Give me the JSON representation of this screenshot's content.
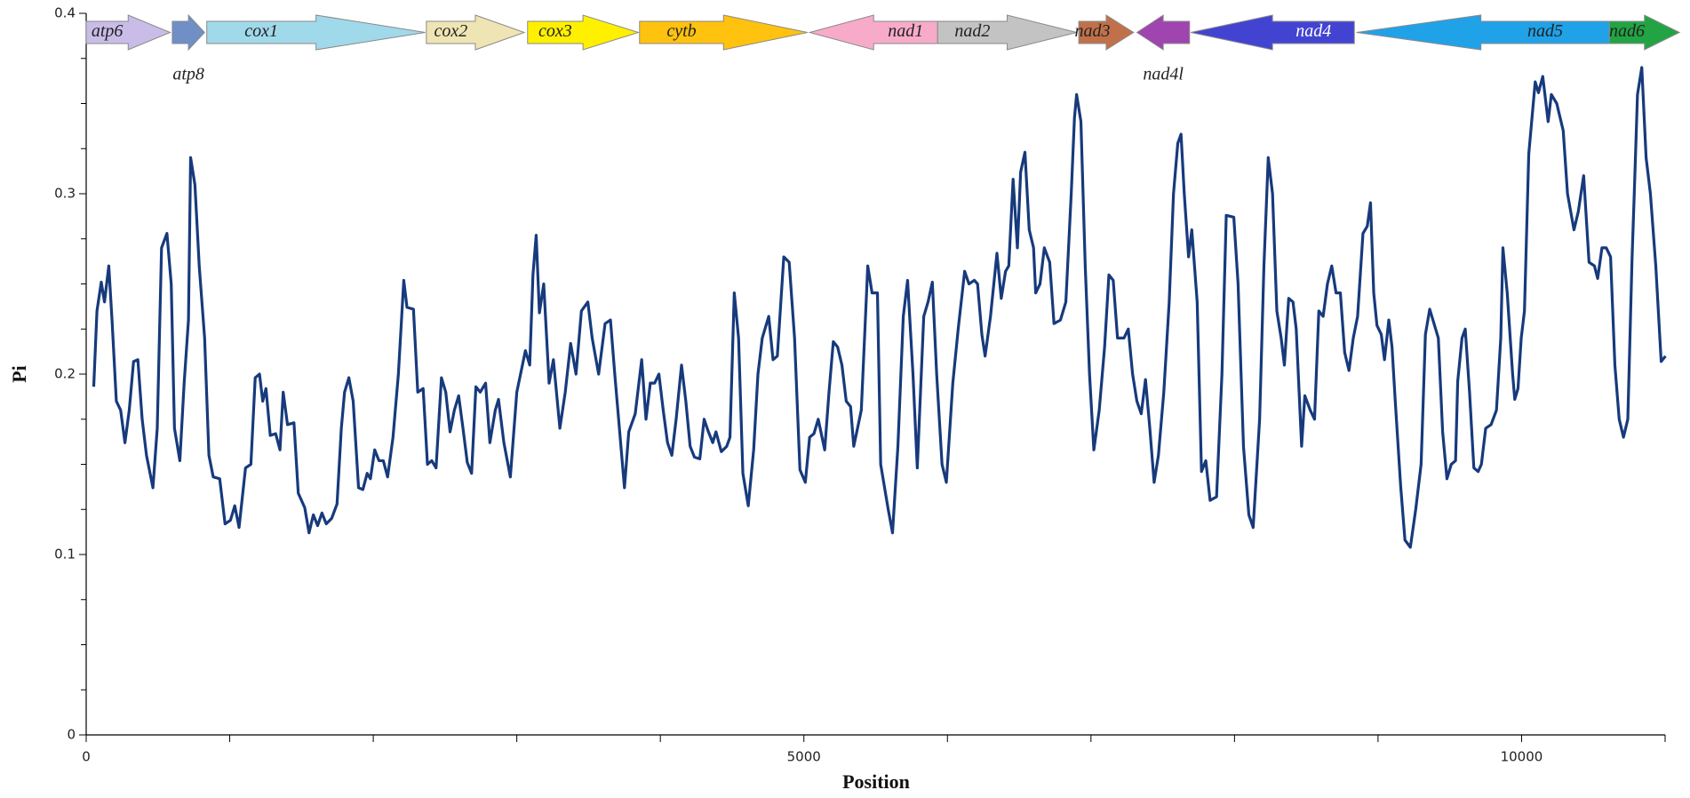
{
  "chart_data": {
    "type": "line",
    "xlabel": "Position",
    "ylabel": "Pi",
    "xlim": [
      0,
      11000
    ],
    "ylim": [
      0,
      0.4
    ],
    "xticks": [
      0,
      5000,
      10000
    ],
    "xminorticks": [
      1000,
      2000,
      3000,
      4000,
      6000,
      7000,
      8000,
      9000,
      11000
    ],
    "yticks": [
      0,
      0.1,
      0.2,
      0.3,
      0.4
    ],
    "yminorticks": [
      0.025,
      0.05,
      0.075,
      0.125,
      0.15,
      0.175,
      0.225,
      0.25,
      0.275,
      0.325,
      0.35,
      0.375
    ],
    "genes": [
      {
        "name": "atp6",
        "start": 0,
        "end": 585,
        "direction": "right",
        "color": "#c9bde8",
        "label_below": false
      },
      {
        "name": "atp8",
        "start": 600,
        "end": 825,
        "direction": "right",
        "color": "#6f8fc6",
        "label_below": true
      },
      {
        "name": "cox1",
        "start": 840,
        "end": 2362,
        "direction": "right",
        "color": "#a0d9ea",
        "label_below": false
      },
      {
        "name": "cox2",
        "start": 2370,
        "end": 3052,
        "direction": "right",
        "color": "#efe5b4",
        "label_below": false
      },
      {
        "name": "cox3",
        "start": 3075,
        "end": 3847,
        "direction": "right",
        "color": "#fff000",
        "label_below": false
      },
      {
        "name": "cytb",
        "start": 3855,
        "end": 5025,
        "direction": "right",
        "color": "#ffc20e",
        "label_below": false
      },
      {
        "name": "nad1",
        "start": 5040,
        "end": 5932,
        "direction": "left",
        "color": "#f7abc9",
        "label_below": false
      },
      {
        "name": "nad2",
        "start": 5932,
        "end": 6900,
        "direction": "right",
        "color": "#c3c3c3",
        "label_below": false
      },
      {
        "name": "nad3",
        "start": 6915,
        "end": 7297,
        "direction": "right",
        "color": "#c0714a",
        "label_below": false
      },
      {
        "name": "nad4l",
        "start": 7320,
        "end": 7687,
        "direction": "left",
        "color": "#a044b0",
        "label_below": true
      },
      {
        "name": "nad4",
        "start": 7695,
        "end": 8835,
        "direction": "left",
        "color": "#4343d2",
        "label_below": false
      },
      {
        "name": "nad5",
        "start": 8850,
        "end": 10612,
        "direction": "left",
        "color": "#20a2e8",
        "label_below": false
      },
      {
        "name": "nad6",
        "start": 10612,
        "end": 11100,
        "direction": "right",
        "color": "#22a444",
        "label_below": false
      }
    ],
    "x": [
      52.5,
      75,
      105,
      127.5,
      157.5,
      180,
      210,
      240,
      270,
      300,
      330,
      360,
      390,
      420,
      465,
      495,
      525,
      562.5,
      592.5,
      615,
      652.5,
      682.5,
      712.5,
      727.5,
      757.5,
      787.5,
      825,
      855,
      885,
      930,
      967.5,
      1005,
      1035,
      1065,
      1110,
      1147.5,
      1177.5,
      1207.5,
      1230,
      1252.5,
      1282.5,
      1320,
      1350,
      1372.5,
      1402.5,
      1447.5,
      1477.5,
      1522.5,
      1552.5,
      1582.5,
      1612.5,
      1642.5,
      1672.5,
      1710,
      1747.5,
      1777.5,
      1800,
      1830,
      1860,
      1897.5,
      1927.5,
      1957.5,
      1980,
      2010,
      2040,
      2070,
      2100,
      2137.5,
      2175,
      2212.5,
      2235,
      2280,
      2310,
      2347.5,
      2377.5,
      2407.5,
      2437.5,
      2475,
      2505,
      2535,
      2565,
      2595,
      2625,
      2655,
      2685,
      2715,
      2745,
      2782.5,
      2812.5,
      2850,
      2872.5,
      2910,
      2955,
      3000,
      3060,
      3090,
      3112.5,
      3135,
      3157.5,
      3187.5,
      3225,
      3255,
      3300,
      3337.5,
      3375,
      3412.5,
      3450,
      3495,
      3525,
      3570,
      3615,
      3652.5,
      3682.5,
      3750,
      3780,
      3825,
      3870,
      3900,
      3930,
      3960,
      3990,
      4020,
      4050,
      4080,
      4110,
      4147.5,
      4177.5,
      4207.5,
      4237.5,
      4275,
      4305,
      4335,
      4365,
      4387.5,
      4425,
      4462.5,
      4485,
      4515,
      4545,
      4575,
      4612.5,
      4650,
      4680,
      4710,
      4755,
      4785,
      4815,
      4860,
      4897.5,
      4935,
      4972.5,
      5010,
      5040,
      5070,
      5100,
      5145,
      5175,
      5205,
      5235,
      5265,
      5295,
      5325,
      5347.5,
      5400,
      5445,
      5475,
      5512.5,
      5535,
      5587.5,
      5617.5,
      5655,
      5692.5,
      5722.5,
      5760,
      5790,
      5835,
      5865,
      5895,
      5925,
      5962.5,
      5992.5,
      6037.5,
      6075,
      6120,
      6150,
      6187.5,
      6210,
      6240,
      6262.5,
      6300,
      6345,
      6375,
      6405,
      6427.5,
      6457.5,
      6487.5,
      6510,
      6540,
      6570,
      6600,
      6615,
      6645,
      6675,
      6712.5,
      6742.5,
      6787.5,
      6825,
      6862.5,
      6885,
      6900,
      6930,
      6960,
      6990,
      7020,
      7057.5,
      7095,
      7125,
      7155,
      7185,
      7230,
      7260,
      7290,
      7320,
      7350,
      7380,
      7410,
      7440,
      7470,
      7507.5,
      7545,
      7575,
      7605,
      7627.5,
      7650,
      7680,
      7702.5,
      7740,
      7770,
      7800,
      7830,
      7875,
      7912.5,
      7942.5,
      7995,
      8025,
      8062.5,
      8100,
      8130,
      8175,
      8205,
      8235,
      8265,
      8295,
      8325,
      8347.5,
      8377.5,
      8407.5,
      8430,
      8467.5,
      8490,
      8527.5,
      8557.5,
      8587.5,
      8617.5,
      8647.5,
      8677.5,
      8707.5,
      8737.5,
      8767.5,
      8797.5,
      8827.5,
      8857.5,
      8895,
      8925,
      8947.5,
      8970,
      8992.5,
      9022.5,
      9045,
      9075,
      9097.5,
      9120,
      9157.5,
      9187.5,
      9225,
      9262.5,
      9300,
      9330,
      9360,
      9390,
      9420,
      9450,
      9480,
      9510,
      9540,
      9555,
      9585,
      9607.5,
      9637.5,
      9667.5,
      9697.5,
      9720,
      9750,
      9787.5,
      9825,
      9855,
      9870,
      9900,
      9937.5,
      9952.5,
      9975,
      9997.5,
      10020,
      10050,
      10095,
      10117.5,
      10147.5,
      10185,
      10207.5,
      10245,
      10290,
      10320,
      10365,
      10395,
      10432.5,
      10470,
      10507.5,
      10530,
      10560,
      10590,
      10620,
      10650,
      10680,
      10710,
      10740,
      10770,
      10785,
      10807.5,
      10837.5,
      10867.5,
      10897.5,
      10935,
      10972.5,
      11002.5
    ],
    "series": [
      {
        "color": "#173a7c",
        "values": [
          0.193,
          0.235,
          0.251,
          0.24,
          0.26,
          0.23,
          0.185,
          0.18,
          0.162,
          0.18,
          0.207,
          0.208,
          0.175,
          0.155,
          0.137,
          0.17,
          0.27,
          0.278,
          0.25,
          0.17,
          0.152,
          0.195,
          0.23,
          0.32,
          0.305,
          0.26,
          0.22,
          0.155,
          0.143,
          0.142,
          0.117,
          0.119,
          0.127,
          0.115,
          0.148,
          0.15,
          0.198,
          0.2,
          0.185,
          0.192,
          0.166,
          0.167,
          0.158,
          0.19,
          0.172,
          0.173,
          0.134,
          0.126,
          0.112,
          0.122,
          0.116,
          0.123,
          0.117,
          0.12,
          0.128,
          0.17,
          0.19,
          0.198,
          0.185,
          0.137,
          0.136,
          0.145,
          0.142,
          0.158,
          0.152,
          0.152,
          0.143,
          0.165,
          0.2,
          0.252,
          0.237,
          0.236,
          0.19,
          0.192,
          0.15,
          0.152,
          0.148,
          0.198,
          0.19,
          0.168,
          0.18,
          0.188,
          0.17,
          0.151,
          0.145,
          0.193,
          0.19,
          0.195,
          0.162,
          0.18,
          0.186,
          0.162,
          0.143,
          0.19,
          0.213,
          0.205,
          0.255,
          0.277,
          0.234,
          0.25,
          0.195,
          0.208,
          0.17,
          0.19,
          0.217,
          0.2,
          0.235,
          0.24,
          0.22,
          0.2,
          0.228,
          0.23,
          0.2,
          0.137,
          0.168,
          0.178,
          0.208,
          0.175,
          0.195,
          0.195,
          0.2,
          0.18,
          0.162,
          0.155,
          0.175,
          0.205,
          0.185,
          0.16,
          0.154,
          0.153,
          0.175,
          0.168,
          0.162,
          0.168,
          0.157,
          0.16,
          0.165,
          0.245,
          0.22,
          0.145,
          0.127,
          0.158,
          0.2,
          0.22,
          0.232,
          0.208,
          0.21,
          0.265,
          0.262,
          0.22,
          0.147,
          0.14,
          0.165,
          0.167,
          0.175,
          0.158,
          0.19,
          0.218,
          0.215,
          0.205,
          0.185,
          0.182,
          0.16,
          0.18,
          0.26,
          0.245,
          0.245,
          0.15,
          0.125,
          0.112,
          0.16,
          0.232,
          0.252,
          0.2,
          0.148,
          0.232,
          0.24,
          0.251,
          0.2,
          0.15,
          0.14,
          0.195,
          0.225,
          0.257,
          0.25,
          0.252,
          0.25,
          0.222,
          0.21,
          0.232,
          0.267,
          0.242,
          0.257,
          0.26,
          0.308,
          0.27,
          0.312,
          0.323,
          0.28,
          0.27,
          0.245,
          0.25,
          0.27,
          0.262,
          0.228,
          0.23,
          0.24,
          0.3,
          0.342,
          0.355,
          0.34,
          0.26,
          0.2,
          0.158,
          0.18,
          0.215,
          0.255,
          0.252,
          0.22,
          0.22,
          0.225,
          0.2,
          0.185,
          0.178,
          0.197,
          0.17,
          0.14,
          0.155,
          0.19,
          0.24,
          0.3,
          0.328,
          0.333,
          0.3,
          0.265,
          0.28,
          0.24,
          0.146,
          0.152,
          0.13,
          0.132,
          0.2,
          0.288,
          0.287,
          0.25,
          0.16,
          0.122,
          0.115,
          0.175,
          0.26,
          0.32,
          0.3,
          0.235,
          0.22,
          0.205,
          0.242,
          0.24,
          0.225,
          0.16,
          0.188,
          0.18,
          0.175,
          0.235,
          0.232,
          0.25,
          0.26,
          0.245,
          0.245,
          0.212,
          0.202,
          0.22,
          0.232,
          0.278,
          0.282,
          0.295,
          0.245,
          0.227,
          0.222,
          0.208,
          0.23,
          0.215,
          0.185,
          0.138,
          0.108,
          0.104,
          0.125,
          0.15,
          0.222,
          0.236,
          0.228,
          0.22,
          0.168,
          0.142,
          0.15,
          0.152,
          0.196,
          0.22,
          0.225,
          0.19,
          0.148,
          0.146,
          0.15,
          0.17,
          0.172,
          0.18,
          0.22,
          0.27,
          0.245,
          0.2,
          0.186,
          0.192,
          0.22,
          0.235,
          0.322,
          0.362,
          0.356,
          0.365,
          0.34,
          0.355,
          0.35,
          0.335,
          0.3,
          0.28,
          0.29,
          0.31,
          0.262,
          0.26,
          0.253,
          0.27,
          0.27,
          0.265,
          0.205,
          0.175,
          0.165,
          0.175,
          0.265,
          0.3,
          0.355,
          0.37,
          0.32,
          0.3,
          0.26,
          0.207,
          0.21
        ]
      }
    ]
  }
}
